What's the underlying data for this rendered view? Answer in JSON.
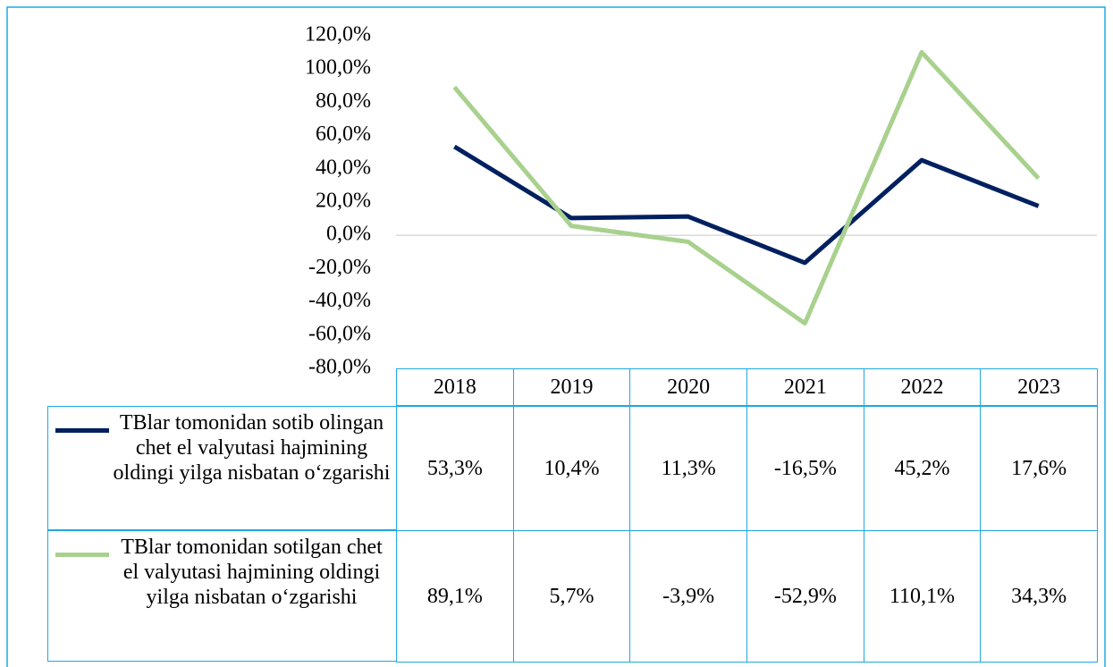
{
  "chart_data": {
    "type": "line",
    "categories": [
      "2018",
      "2019",
      "2020",
      "2021",
      "2022",
      "2023"
    ],
    "series": [
      {
        "name": "TBlar tomonidan sotib olingan chet el valyutasi hajmining oldingi yilga nisbatan o‘zgarishi",
        "color": "#002060",
        "values": [
          53.3,
          10.4,
          11.3,
          -16.5,
          45.2,
          17.6
        ],
        "value_labels": [
          "53,3%",
          "10,4%",
          "11,3%",
          "-16,5%",
          "45,2%",
          "17,6%"
        ]
      },
      {
        "name": "TBlar tomonidan sotilgan chet el valyutasi hajmining oldingi yilga nisbatan o‘zgarishi",
        "color": "#a9d18e",
        "values": [
          89.1,
          5.7,
          -3.9,
          -52.9,
          110.1,
          34.3
        ],
        "value_labels": [
          "89,1%",
          "5,7%",
          "-3,9%",
          "-52,9%",
          "110,1%",
          "34,3%"
        ]
      }
    ],
    "ylim": [
      -80,
      120
    ],
    "yticks": [
      {
        "value": -80,
        "label": "-80,0%"
      },
      {
        "value": -60,
        "label": "-60,0%"
      },
      {
        "value": -40,
        "label": "-40,0%"
      },
      {
        "value": -20,
        "label": "-20,0%"
      },
      {
        "value": 0,
        "label": "0,0%"
      },
      {
        "value": 20,
        "label": "20,0%"
      },
      {
        "value": 40,
        "label": "40,0%"
      },
      {
        "value": 60,
        "label": "60,0%"
      },
      {
        "value": 80,
        "label": "80,0%"
      },
      {
        "value": 100,
        "label": "100,0%"
      },
      {
        "value": 120,
        "label": "120,0%"
      }
    ],
    "data_table": true
  }
}
